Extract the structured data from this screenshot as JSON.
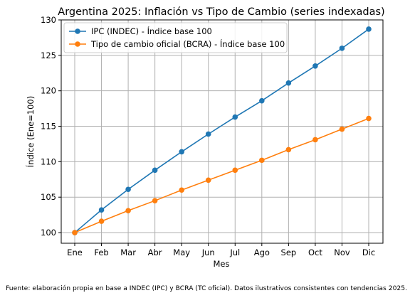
{
  "chart_data": {
    "type": "line",
    "title": "Argentina 2025: Inflación vs Tipo de Cambio (series indexadas)",
    "xlabel": "Mes",
    "ylabel": "Índice (Ene=100)",
    "categories": [
      "Ene",
      "Feb",
      "Mar",
      "Abr",
      "May",
      "Jun",
      "Jul",
      "Ago",
      "Sep",
      "Oct",
      "Nov",
      "Dic"
    ],
    "ylim": [
      98.5,
      130
    ],
    "yticks": [
      100,
      105,
      110,
      115,
      120,
      125,
      130
    ],
    "grid": true,
    "legend_position": "top-left",
    "series": [
      {
        "name": "IPC (INDEC) - Índice base 100",
        "color": "#1f77b4",
        "values": [
          100.0,
          103.2,
          106.1,
          108.8,
          111.4,
          113.9,
          116.3,
          118.6,
          121.1,
          123.5,
          126.0,
          128.7
        ]
      },
      {
        "name": "Tipo de cambio oficial (BCRA) - Índice base 100",
        "color": "#ff7f0e",
        "values": [
          100.0,
          101.6,
          103.1,
          104.5,
          106.0,
          107.4,
          108.8,
          110.2,
          111.7,
          113.1,
          114.6,
          116.1
        ]
      }
    ],
    "footnote": "Fuente: elaboración propia en base a INDEC (IPC) y BCRA (TC oficial). Datos ilustrativos consistentes con tendencias 2025."
  }
}
